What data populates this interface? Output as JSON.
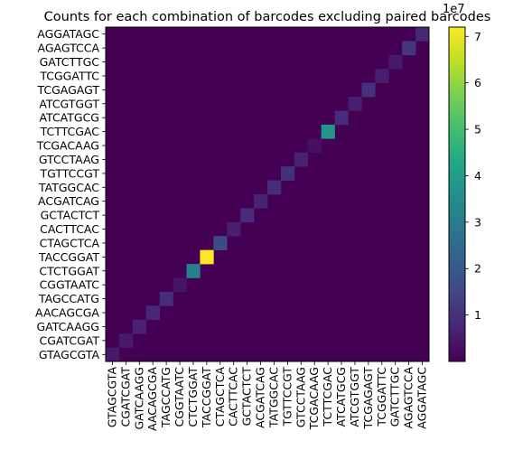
{
  "chart_data": {
    "type": "heatmap",
    "title": "Counts for each combination of barcodes excluding paired barcodes",
    "xlabel": "",
    "ylabel": "",
    "barcodes": [
      "GTAGCGTA",
      "CGATCGAT",
      "GATCAAGG",
      "AACAGCGA",
      "TAGCCATG",
      "CGGTAATC",
      "CTCTGGAT",
      "TACCGGAT",
      "CTAGCTCA",
      "CACTTCAC",
      "GCTACTCT",
      "ACGATCAG",
      "TATGGCAC",
      "TGTTCCGT",
      "GTCCTAAG",
      "TCGACAAG",
      "TCTTCGAC",
      "ATCATGCG",
      "ATCGTGGT",
      "TCGAGAGT",
      "TCGGATTC",
      "GATCTTGC",
      "AGAGTCCA",
      "AGGATAGC"
    ],
    "x_order": "left-to-right",
    "y_order": "bottom-to-top",
    "diagonal_values": [
      0.5,
      0.5,
      0.7,
      0.8,
      0.9,
      0.4,
      3.1,
      7.2,
      1.6,
      0.6,
      0.9,
      0.7,
      0.9,
      1.0,
      0.7,
      0.3,
      3.8,
      0.9,
      0.6,
      1.0,
      0.6,
      0.5,
      1.1,
      0.8
    ],
    "off_diagonal_value": 0.0,
    "value_multiplier_label": "1e7",
    "colorbar": {
      "colormap": "viridis",
      "range": [
        0.0,
        7.2
      ],
      "ticks": [
        "1",
        "2",
        "3",
        "4",
        "5",
        "6",
        "7"
      ],
      "tick_values": [
        1,
        2,
        3,
        4,
        5,
        6,
        7
      ]
    }
  }
}
